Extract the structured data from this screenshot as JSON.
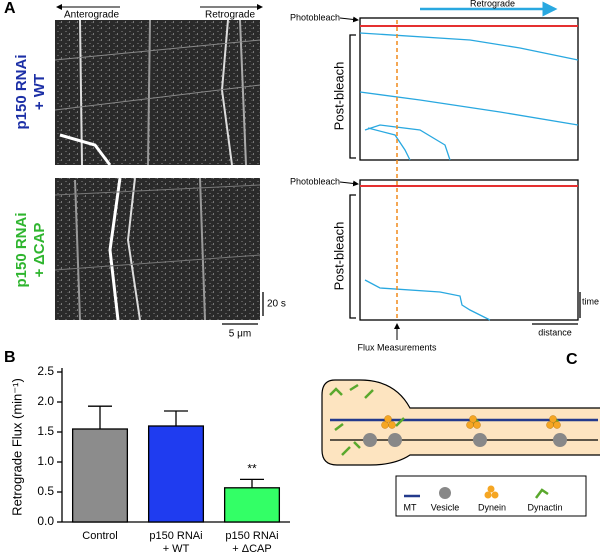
{
  "panel_labels": [
    "A",
    "B",
    "C"
  ],
  "kymographs": {
    "directions": [
      "Anterograde",
      "Retrograde"
    ],
    "conditions": [
      {
        "line1": "p150 RNAi",
        "line2": "+ WT"
      },
      {
        "line1": "p150 RNAi",
        "line2": "+ ΔCAP"
      }
    ],
    "time_scale": "20 s",
    "distance_scale": "5 μm"
  },
  "traces": {
    "photobleach": "Photobleach",
    "post_bleach": "Post-bleach",
    "direction": "Retrograde",
    "flux": "Flux Measurements",
    "time": "time",
    "distance": "distance"
  },
  "chart_data": {
    "type": "bar",
    "y_label": "Retrograde Flux (min⁻¹)",
    "categories": [
      "Control",
      "p150 RNAi + WT",
      "p150 RNAi + ΔCAP"
    ],
    "values": [
      1.55,
      1.6,
      0.57
    ],
    "errors": [
      0.38,
      0.25,
      0.14
    ],
    "colors": [
      "#8c8c8c",
      "#1f3cf0",
      "#33ff66"
    ],
    "ylim": [
      0,
      2.5
    ],
    "yticks": [
      {
        "value": 0,
        "label": "0.0"
      },
      0.5,
      {
        "value": 1,
        "label": "1.0"
      },
      1.5,
      {
        "value": 2,
        "label": "2.0"
      },
      2.5
    ],
    "annotations": [
      {
        "category": 2,
        "text": "**"
      }
    ]
  },
  "diagram_legend": [
    "MT",
    "Vesicle",
    "Dynein",
    "Dynactin"
  ]
}
